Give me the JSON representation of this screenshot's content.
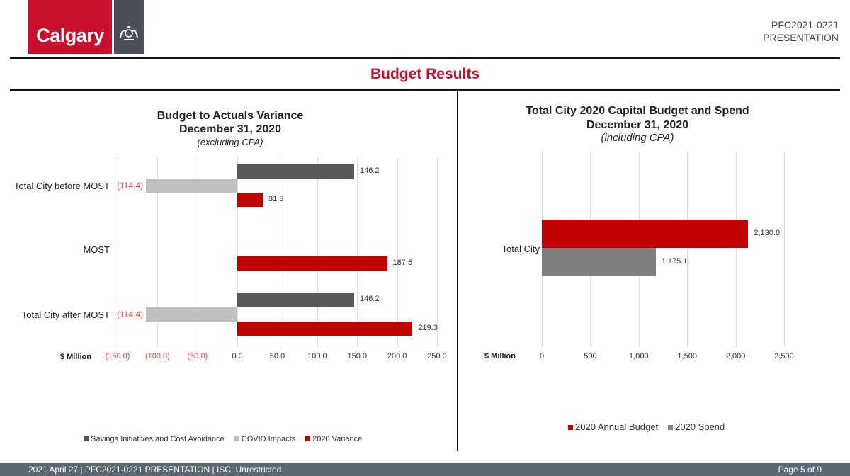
{
  "header": {
    "logo_text": "Calgary",
    "doc_id": "PFC2021-0221",
    "doc_type": "PRESENTATION",
    "slide_title": "Budget Results"
  },
  "colors": {
    "brand_red": "#c8102e",
    "bar_red": "#c00000",
    "dark_gray": "#595959",
    "light_gray": "#bfbfbf",
    "mid_gray": "#7f7f7f",
    "footer": "#5b6770"
  },
  "chart_data": [
    {
      "type": "bar",
      "orientation": "horizontal",
      "title": "Budget to Actuals Variance",
      "subtitle": "December 31, 2020",
      "note": "(excluding CPA)",
      "xlabel": "$ Million",
      "xlim": [
        -150,
        250
      ],
      "ticks": [
        "(150.0)",
        "(100.0)",
        "(50.0)",
        "0.0",
        "50.0",
        "100.0",
        "150.0",
        "200.0",
        "250.0"
      ],
      "tick_values": [
        -150,
        -100,
        -50,
        0,
        50,
        100,
        150,
        200,
        250
      ],
      "categories": [
        "Total City before MOST",
        "MOST",
        "Total City after MOST"
      ],
      "series": [
        {
          "name": "Savings Initiatives and Cost Avoidance",
          "color": "#595959",
          "values": [
            146.2,
            null,
            146.2
          ],
          "labels": [
            "146.2",
            "",
            "146.2"
          ]
        },
        {
          "name": "COVID Impacts",
          "color": "#bfbfbf",
          "values": [
            -114.4,
            null,
            -114.4
          ],
          "labels": [
            "(114.4)",
            "",
            "(114.4)"
          ]
        },
        {
          "name": "2020 Variance",
          "color": "#c00000",
          "values": [
            31.8,
            187.5,
            219.3
          ],
          "labels": [
            "31.8",
            "187.5",
            "219.3"
          ]
        }
      ],
      "grid": true,
      "legend": "bottom"
    },
    {
      "type": "bar",
      "orientation": "horizontal",
      "title": "Total City 2020 Capital Budget and Spend",
      "subtitle": "December 31, 2020",
      "note": "(including CPA)",
      "xlabel": "$ Million",
      "xlim": [
        0,
        2500
      ],
      "ticks": [
        "0",
        "500",
        "1,000",
        "1,500",
        "2,000",
        "2,500"
      ],
      "tick_values": [
        0,
        500,
        1000,
        1500,
        2000,
        2500
      ],
      "categories": [
        "Total City"
      ],
      "series": [
        {
          "name": "2020 Annual Budget",
          "color": "#c00000",
          "values": [
            2130.0
          ],
          "labels": [
            "2,130.0"
          ]
        },
        {
          "name": "2020 Spend",
          "color": "#7f7f7f",
          "values": [
            1175.1
          ],
          "labels": [
            "1,175.1"
          ]
        }
      ],
      "grid": true,
      "legend": "bottom"
    }
  ],
  "footer": {
    "date": "2021 April 27",
    "doc": "PFC2021-0221 PRESENTATION",
    "classification": "ISC: Unrestricted",
    "page": "Page 5 of  9"
  }
}
